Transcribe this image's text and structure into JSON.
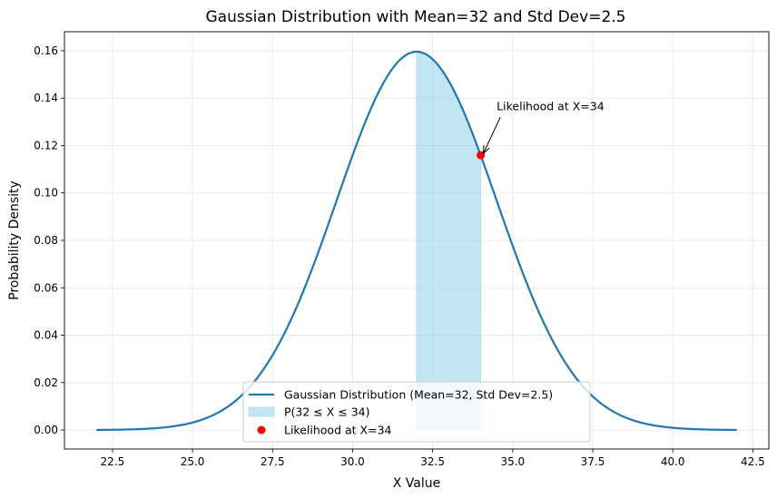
{
  "chart_data": {
    "type": "line",
    "title": "Gaussian Distribution with Mean=32 and Std Dev=2.5",
    "xlabel": "X Value",
    "ylabel": "Probability Density",
    "xlim": [
      21.0,
      43.0
    ],
    "ylim": [
      -0.008,
      0.168
    ],
    "grid": true,
    "mean": 32,
    "std": 2.5,
    "curve_domain": [
      22,
      42
    ],
    "x_ticks": [
      22.5,
      25.0,
      27.5,
      30.0,
      32.5,
      35.0,
      37.5,
      40.0,
      42.5
    ],
    "x_tick_labels": [
      "22.5",
      "25.0",
      "27.5",
      "30.0",
      "32.5",
      "35.0",
      "37.5",
      "40.0",
      "42.5"
    ],
    "y_ticks": [
      0.0,
      0.02,
      0.04,
      0.06,
      0.08,
      0.1,
      0.12,
      0.14,
      0.16
    ],
    "y_tick_labels": [
      "0.00",
      "0.02",
      "0.04",
      "0.06",
      "0.08",
      "0.10",
      "0.12",
      "0.14",
      "0.16"
    ],
    "shaded_region": {
      "from": 32,
      "to": 34
    },
    "point": {
      "x": 34,
      "y": 0.1159
    },
    "annotation": {
      "text": "Likelihood at X=34",
      "text_x": 34.5,
      "text_y": 0.135
    },
    "legend_position": "lower center",
    "series": [
      {
        "name": "Gaussian Distribution (Mean=32, Std Dev=2.5)",
        "kind": "line",
        "color": "#1f77b4"
      },
      {
        "name": "P(32 ≤ X ≤ 34)",
        "kind": "fill",
        "color": "#87ceeb"
      },
      {
        "name": "Likelihood at X=34",
        "kind": "scatter",
        "color": "#ff0000"
      }
    ]
  }
}
